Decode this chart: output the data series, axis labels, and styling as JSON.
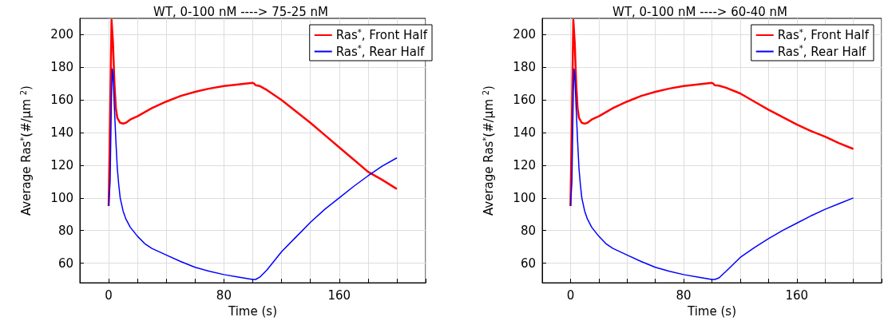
{
  "chart_data": [
    {
      "type": "line",
      "title": "WT, 0-100 nM ----> 75-25 nM",
      "xlabel": "Time (s)",
      "ylabel": "Average Ras$^{*}$(#/µm $^{2}$)",
      "xlim": [
        -20,
        220
      ],
      "ylim": [
        48,
        210
      ],
      "xticks": [
        {
          "value": -20,
          "label": null
        },
        0,
        {
          "value": 20,
          "label": null
        },
        {
          "value": 40,
          "label": null
        },
        {
          "value": 60,
          "label": null
        },
        80,
        {
          "value": 100,
          "label": null
        },
        {
          "value": 120,
          "label": null
        },
        {
          "value": 140,
          "label": null
        },
        160,
        {
          "value": 180,
          "label": null
        },
        {
          "value": 200,
          "label": null
        },
        {
          "value": 220,
          "label": null
        }
      ],
      "yticks": [
        60,
        80,
        100,
        120,
        140,
        160,
        180,
        200
      ],
      "grid": true,
      "legend": "top right",
      "marker": "none",
      "line_style": "solid",
      "series": [
        {
          "name": "Ras$^{*}$, Front Half",
          "color": "#ff0000",
          "x": [
            0,
            1,
            2,
            3,
            4,
            5,
            6,
            8,
            10,
            12,
            15,
            20,
            30,
            40,
            50,
            60,
            70,
            80,
            90,
            100,
            101,
            102,
            105,
            110,
            120,
            130,
            140,
            150,
            160,
            170,
            180,
            190,
            200
          ],
          "values": [
            95,
            150,
            209,
            195,
            170,
            155,
            149,
            146,
            145.5,
            146,
            148,
            150,
            155,
            159,
            162.5,
            165,
            167,
            168.5,
            169.5,
            170.5,
            170,
            169,
            168.5,
            166,
            160,
            153,
            146,
            138.5,
            131,
            123.5,
            116,
            111,
            105.5
          ]
        },
        {
          "name": "Ras$^{*}$, Rear Half",
          "color": "#0000ff",
          "x": [
            0,
            1,
            2,
            2.5,
            3,
            4,
            5,
            6,
            7,
            8,
            10,
            12,
            15,
            20,
            25,
            30,
            40,
            50,
            60,
            70,
            80,
            90,
            100,
            102,
            105,
            110,
            120,
            130,
            140,
            150,
            160,
            170,
            180,
            190,
            200
          ],
          "values": [
            95,
            110,
            165,
            179,
            176,
            155,
            135,
            118,
            108,
            100,
            92,
            87,
            82,
            76.5,
            72,
            69,
            65,
            61,
            57.5,
            55,
            53,
            51.5,
            50,
            50,
            51.5,
            56,
            67,
            76,
            85,
            93,
            100,
            107,
            113.5,
            119.5,
            124.5
          ]
        }
      ]
    },
    {
      "type": "line",
      "title": "WT, 0-100 nM ----> 60-40 nM",
      "xlabel": "Time (s)",
      "ylabel": "Average Ras$^{*}$(#/µm $^{2}$)",
      "xlim": [
        -20,
        220
      ],
      "ylim": [
        48,
        210
      ],
      "xticks": [
        {
          "value": -20,
          "label": null
        },
        0,
        {
          "value": 20,
          "label": null
        },
        {
          "value": 40,
          "label": null
        },
        {
          "value": 60,
          "label": null
        },
        80,
        {
          "value": 100,
          "label": null
        },
        {
          "value": 120,
          "label": null
        },
        {
          "value": 140,
          "label": null
        },
        160,
        {
          "value": 180,
          "label": null
        },
        {
          "value": 200,
          "label": null
        },
        {
          "value": 220,
          "label": null
        }
      ],
      "yticks": [
        60,
        80,
        100,
        120,
        140,
        160,
        180,
        200
      ],
      "grid": true,
      "legend": "top right",
      "marker": "none",
      "line_style": "solid",
      "series": [
        {
          "name": "Ras$^{*}$, Front Half",
          "color": "#ff0000",
          "x": [
            0,
            1,
            2,
            3,
            4,
            5,
            6,
            8,
            10,
            12,
            15,
            20,
            30,
            40,
            50,
            60,
            70,
            80,
            90,
            100,
            101,
            102,
            105,
            110,
            120,
            130,
            140,
            150,
            160,
            170,
            180,
            190,
            200
          ],
          "values": [
            95,
            150,
            209,
            195,
            170,
            155,
            149,
            146,
            145.5,
            146,
            148,
            150,
            155,
            159,
            162.5,
            165,
            167,
            168.5,
            169.5,
            170.5,
            170,
            169,
            168.8,
            167.5,
            164,
            159,
            154,
            149.5,
            145,
            141,
            137.5,
            133.5,
            130
          ]
        },
        {
          "name": "Ras$^{*}$, Rear Half",
          "color": "#0000ff",
          "x": [
            0,
            1,
            2,
            2.5,
            3,
            4,
            5,
            6,
            7,
            8,
            10,
            12,
            15,
            20,
            25,
            30,
            40,
            50,
            60,
            70,
            80,
            90,
            100,
            102,
            105,
            110,
            120,
            130,
            140,
            150,
            160,
            170,
            180,
            190,
            200
          ],
          "values": [
            95,
            110,
            165,
            179,
            176,
            155,
            135,
            118,
            108,
            100,
            92,
            87,
            82,
            76.5,
            72,
            69,
            65,
            61,
            57.5,
            55,
            53,
            51.5,
            50,
            50,
            51,
            55,
            63.5,
            69.5,
            75,
            80,
            84.5,
            89,
            93,
            96.5,
            100
          ]
        }
      ]
    }
  ]
}
